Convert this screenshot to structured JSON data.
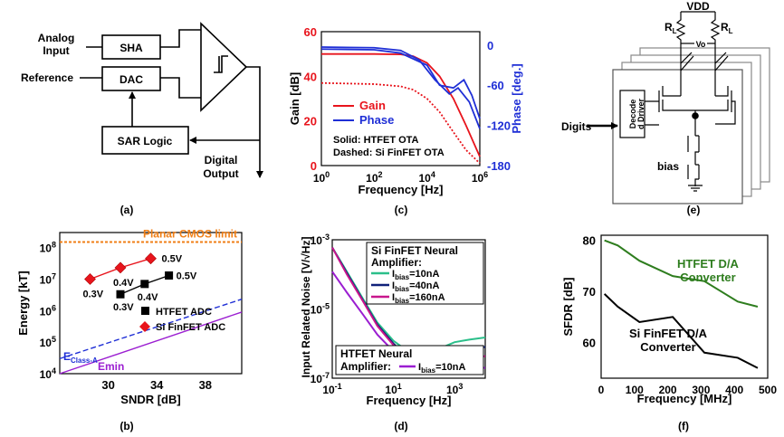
{
  "colors": {
    "red": "#e8141c",
    "blue": "#1f2fd6",
    "green": "#2e7d1e",
    "orange": "#f07f16",
    "purple": "#9b1ed1",
    "teal": "#2bbf8a",
    "navy": "#10207a",
    "magenta": "#c8168c",
    "black": "#000000"
  },
  "panels": {
    "a": {
      "label": "(a)",
      "analog_input": [
        "Analog",
        "Input"
      ],
      "reference": "Reference",
      "sha": "SHA",
      "dac": "DAC",
      "sar": "SAR Logic",
      "digital_output": [
        "Digital",
        "Output"
      ]
    },
    "e": {
      "label": "(e)",
      "vdd": "VDD",
      "rl": "R",
      "rl_sub": "L",
      "vo": "Vo",
      "digits": "Digits",
      "decoder": [
        "Decode",
        "d Driver"
      ],
      "bias": "bias"
    }
  },
  "chart_data": [
    {
      "id": "c",
      "panel_label": "(c)",
      "type": "line",
      "xlabel": "Frequency [Hz]",
      "ylabel": "Gain [dB]",
      "y2label": "Phase [deg.]",
      "xscale": "log",
      "xlim": [
        1,
        1000000
      ],
      "xticks": [
        {
          "v": 1,
          "b": "10",
          "e": "0"
        },
        {
          "v": 100,
          "b": "10",
          "e": "2"
        },
        {
          "v": 10000,
          "b": "10",
          "e": "4"
        },
        {
          "v": 1000000,
          "b": "10",
          "e": "6"
        }
      ],
      "ylim": [
        0,
        60
      ],
      "yticks": [
        0,
        20,
        40,
        60
      ],
      "y2lim": [
        -180,
        20
      ],
      "y2ticks": [
        0,
        -60,
        -120,
        -180
      ],
      "legend": [
        "Gain",
        "Phase"
      ],
      "notes": [
        "Solid: HTFET OTA",
        "Dashed: Si FinFET OTA"
      ],
      "series": [
        {
          "name": "Gain",
          "style": "solid",
          "axis": "y",
          "color": "#e8141c",
          "x": [
            1,
            100,
            1000,
            3000,
            10000,
            30000,
            100000,
            300000,
            1000000
          ],
          "y": [
            50,
            50,
            49.8,
            49,
            46,
            40,
            30,
            18,
            4
          ]
        },
        {
          "name": "Gain",
          "style": "dashed",
          "axis": "y",
          "color": "#e8141c",
          "x": [
            1,
            100,
            1000,
            3000,
            10000,
            30000,
            100000,
            300000,
            1000000
          ],
          "y": [
            37,
            36.5,
            35.5,
            34,
            30,
            24,
            15,
            7,
            1
          ]
        },
        {
          "name": "Phase",
          "style": "solid",
          "axis": "y2",
          "color": "#1f2fd6",
          "x": [
            1,
            100,
            1000,
            5000,
            20000,
            70000,
            150000,
            400000,
            1000000
          ],
          "y": [
            -3,
            -4,
            -8,
            -22,
            -52,
            -73,
            -64,
            -85,
            -125
          ]
        },
        {
          "name": "Phase",
          "style": "solid",
          "axis": "y2",
          "color": "#1f2fd6",
          "x": [
            1,
            100,
            1000,
            10000,
            30000,
            100000,
            250000,
            500000,
            1000000
          ],
          "y": [
            -6,
            -7,
            -12,
            -30,
            -60,
            -64,
            -52,
            -75,
            -110
          ]
        }
      ]
    },
    {
      "id": "b",
      "panel_label": "(b)",
      "type": "scatter",
      "xlabel": "SNDR [dB]",
      "ylabel": "Energy [kT]",
      "xlim": [
        26,
        41
      ],
      "xticks": [
        30,
        34,
        38
      ],
      "yscale": "log",
      "ylim": [
        10000,
        300000000
      ],
      "yticks": [
        {
          "v": 10000,
          "b": "10",
          "e": "4"
        },
        {
          "v": 100000,
          "b": "10",
          "e": "5"
        },
        {
          "v": 1000000,
          "b": "10",
          "e": "6"
        },
        {
          "v": 10000000,
          "b": "10",
          "e": "7"
        },
        {
          "v": 100000000,
          "b": "10",
          "e": "8"
        }
      ],
      "limit_line": {
        "name": "Planar CMOS limit",
        "y": 150000000
      },
      "legend": [
        "HTFET ADC",
        "Si FinFET ADC"
      ],
      "series": [
        {
          "name": "HTFET ADC",
          "marker": "square",
          "color": "#000000",
          "x": [
            31,
            33,
            35
          ],
          "y": [
            3300000,
            7000000,
            13000000
          ],
          "labels": [
            "0.3V",
            "0.4V",
            "0.5V"
          ]
        },
        {
          "name": "Si FinFET ADC",
          "marker": "diamond",
          "color": "#e8141c",
          "x": [
            28.5,
            31,
            33.5
          ],
          "y": [
            10000000,
            23000000,
            45000000
          ],
          "labels": [
            "0.3V",
            "0.4V",
            "0.5V"
          ]
        },
        {
          "name": "E",
          "name_sub": "Class-A",
          "style": "dashed",
          "color": "#1f2fd6",
          "x": [
            26,
            41
          ],
          "y": [
            30000,
            2300000
          ]
        },
        {
          "name": "Emin",
          "style": "solid",
          "color": "#9b1ed1",
          "x": [
            26,
            41
          ],
          "y": [
            10000,
            900000
          ]
        }
      ]
    },
    {
      "id": "d",
      "panel_label": "(d)",
      "type": "line",
      "xlabel": "Frequency [Hz]",
      "ylabel": "Input Related Noise [V/√Hz]",
      "xscale": "log",
      "xlim": [
        0.1,
        10000
      ],
      "xticks": [
        {
          "v": 0.1,
          "b": "10",
          "e": "-1"
        },
        {
          "v": 10,
          "b": "10",
          "e": "1"
        },
        {
          "v": 1000,
          "b": "10",
          "e": "3"
        }
      ],
      "yscale": "log",
      "ylim": [
        1e-07,
        0.001
      ],
      "yticks": [
        {
          "v": 1e-07,
          "b": "10",
          "e": "-7"
        },
        {
          "v": 1e-05,
          "b": "10",
          "e": "-5"
        },
        {
          "v": 0.001,
          "b": "10",
          "e": "-3"
        }
      ],
      "legend_title": [
        "Si FinFET Neural",
        "Amplifier:"
      ],
      "legend2_title": [
        "HTFET Neural",
        "Amplifier:"
      ],
      "legend_rows": [
        {
          "pre": "I",
          "sub": "bias",
          "post": "=10nA",
          "color": "#2bbf8a"
        },
        {
          "pre": "I",
          "sub": "bias",
          "post": "=40nA",
          "color": "#10207a"
        },
        {
          "pre": "I",
          "sub": "bias",
          "post": "=160nA",
          "color": "#c8168c"
        }
      ],
      "legend2_row": {
        "pre": "I",
        "sub": "bias",
        "post": "=10nA",
        "color": "#9b1ed1"
      },
      "series": [
        {
          "name": "Ibias=10nA (Si FinFET)",
          "color": "#2bbf8a",
          "x": [
            0.1,
            0.3,
            1,
            3,
            10,
            30,
            100,
            300,
            1000,
            3000,
            10000
          ],
          "y": [
            0.0006,
            0.00012,
            2e-05,
            4e-06,
            1.2e-06,
            6e-07,
            4e-07,
            7e-07,
            1.1e-06,
            1.3e-06,
            1.5e-06
          ]
        },
        {
          "name": "Ibias=40nA (Si FinFET)",
          "color": "#10207a",
          "x": [
            0.1,
            0.3,
            1,
            3,
            10,
            30,
            100,
            300,
            1000,
            3000,
            10000
          ],
          "y": [
            0.0006,
            0.00011,
            1.8e-05,
            3.5e-06,
            1e-06,
            4e-07,
            2.5e-07,
            3.8e-07,
            6e-07,
            7e-07,
            8e-07
          ]
        },
        {
          "name": "Ibias=160nA (Si FinFET)",
          "color": "#c8168c",
          "x": [
            0.1,
            0.3,
            1,
            3,
            10,
            30,
            100,
            300,
            1000,
            3000,
            10000
          ],
          "y": [
            0.0006,
            0.0001,
            1.7e-05,
            3.2e-06,
            9e-07,
            3.5e-07,
            2.2e-07,
            2.8e-07,
            4e-07,
            4.2e-07,
            4.3e-07
          ]
        },
        {
          "name": "Ibias=10nA (HTFET)",
          "color": "#9b1ed1",
          "x": [
            0.1,
            0.3,
            1,
            3,
            10,
            30,
            100,
            300,
            1000,
            3000,
            10000
          ],
          "y": [
            0.00012,
            3e-05,
            7e-06,
            1.8e-06,
            6e-07,
            2.8e-07,
            1.8e-07,
            1.8e-07,
            2e-07,
            2e-07,
            2e-07
          ]
        }
      ]
    },
    {
      "id": "f",
      "panel_label": "(f)",
      "type": "line",
      "xlabel": "Frequency [MHz]",
      "ylabel": "SFDR [dB]",
      "xlim": [
        0,
        500
      ],
      "xticks": [
        0,
        100,
        200,
        300,
        400,
        500
      ],
      "ylim": [
        53,
        81
      ],
      "yticks": [
        60,
        70,
        80
      ],
      "series": [
        {
          "name": "HTFET D/A Converter",
          "label_lines": [
            "HTFET D/A",
            "Converter"
          ],
          "color": "#2e7d1e",
          "x": [
            10,
            50,
            115,
            215,
            310,
            410,
            470
          ],
          "y": [
            80,
            79,
            76,
            73,
            72,
            68,
            67
          ]
        },
        {
          "name": "Si FinFET D/A Converter",
          "label_lines": [
            "Si FinFET D/A",
            "Converter"
          ],
          "color": "#000000",
          "x": [
            10,
            50,
            115,
            215,
            310,
            410,
            470
          ],
          "y": [
            69.5,
            67,
            64,
            65,
            58,
            57,
            55
          ]
        }
      ]
    }
  ]
}
